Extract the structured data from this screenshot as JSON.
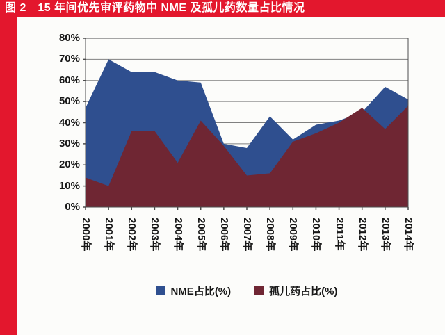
{
  "banner": {
    "title": "图 2　15 年间优先审评药物中 NME 及孤儿药数量占比情况",
    "bg_color": "#e3172d",
    "text_color": "#ffffff"
  },
  "chart_data": {
    "type": "area",
    "title": "15 年间优先审评药物中 NME 及孤儿药数量占比情况",
    "categories": [
      "2000年",
      "2001年",
      "2002年",
      "2003年",
      "2004年",
      "2005年",
      "2006年",
      "2007年",
      "2008年",
      "2009年",
      "2010年",
      "2011年",
      "2012年",
      "2013年",
      "2014年"
    ],
    "series": [
      {
        "name": "NME占比(%)",
        "color": "#2f4f8f",
        "values": [
          47,
          70,
          64,
          64,
          60,
          59,
          30,
          28,
          43,
          32,
          39,
          41,
          45,
          57,
          51
        ]
      },
      {
        "name": "孤儿药占比(%)",
        "color": "#6f2633",
        "values": [
          14,
          10,
          36,
          36,
          21,
          41,
          29,
          15,
          16,
          31,
          35,
          40,
          47,
          37,
          48
        ]
      }
    ],
    "draw_order": "second series in front",
    "ylim": [
      0,
      80
    ],
    "ytick_step": 10,
    "ytick_labels": [
      "0%",
      "10%",
      "20%",
      "30%",
      "40%",
      "50%",
      "60%",
      "70%",
      "80%"
    ],
    "grid": "horizontal",
    "gridline_color": "#808080",
    "axis_color": "#4d4d4d",
    "legend_position": "bottom"
  }
}
